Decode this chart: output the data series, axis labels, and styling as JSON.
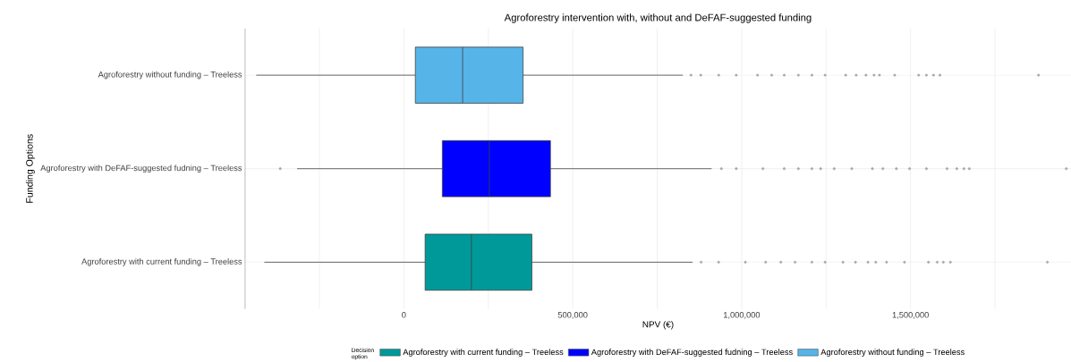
{
  "chart_data": {
    "type": "box",
    "orientation": "horizontal",
    "title": "Agroforestry intervention with, without and DeFAF-suggested funding",
    "xlabel": "NPV (€)",
    "ylabel": "Funding Options",
    "legend_title": "Decision option",
    "legend": "bottom",
    "grid": true,
    "categories": [
      "Agroforestry without funding – Treeless",
      "Agroforestry with DeFAF-suggested fudning – Treeless",
      "Agroforestry with current funding – Treeless"
    ],
    "xlim": [
      -470000,
      1975000
    ],
    "xticks": [
      {
        "value": -250000,
        "label": null
      },
      0,
      {
        "value": 250000,
        "label": null
      },
      {
        "value": 500000,
        "label": "500,000"
      },
      {
        "value": 750000,
        "label": null
      },
      {
        "value": 1000000,
        "label": "1,000,000"
      },
      {
        "value": 1250000,
        "label": null
      },
      {
        "value": 1500000,
        "label": "1,500,000"
      },
      {
        "value": 1750000,
        "label": null
      }
    ],
    "series": [
      {
        "name": "Agroforestry with current funding – Treeless",
        "color": "#009999",
        "boxes": [
          null,
          null,
          {
            "low": -413000,
            "q1": 63000,
            "median": 200000,
            "q3": 379000,
            "high": 855000,
            "outliers": [
              880000,
              932000,
              1011000,
              1071000,
              1116000,
              1158000,
              1208000,
              1247000,
              1300000,
              1337000,
              1374000,
              1397000,
              1429000,
              1482000,
              1553000,
              1579000,
              1597000,
              1618000,
              1905000
            ]
          }
        ]
      },
      {
        "name": "Agroforestry with DeFAF-suggested fudning – Treeless",
        "color": "#0000ff",
        "boxes": [
          null,
          {
            "low": -316000,
            "q1": 114000,
            "median": 253000,
            "q3": 434000,
            "high": 911000,
            "outliers": [
              -366000,
              940000,
              984000,
              1063000,
              1126000,
              1168000,
              1208000,
              1234000,
              1274000,
              1326000,
              1387000,
              1418000,
              1458000,
              1497000,
              1547000,
              1608000,
              1637000,
              1658000,
              1674000,
              1961000
            ]
          },
          null
        ]
      },
      {
        "name": "Agroforestry without funding – Treeless",
        "color": "#56b4e9",
        "boxes": [
          {
            "low": -437000,
            "q1": 34000,
            "median": 174000,
            "q3": 353000,
            "high": 826000,
            "outliers": [
              850000,
              879000,
              932000,
              984000,
              1047000,
              1089000,
              1126000,
              1168000,
              1208000,
              1247000,
              1308000,
              1339000,
              1368000,
              1392000,
              1408000,
              1453000,
              1524000,
              1547000,
              1568000,
              1587000,
              1879000
            ]
          },
          null,
          null
        ]
      }
    ]
  }
}
